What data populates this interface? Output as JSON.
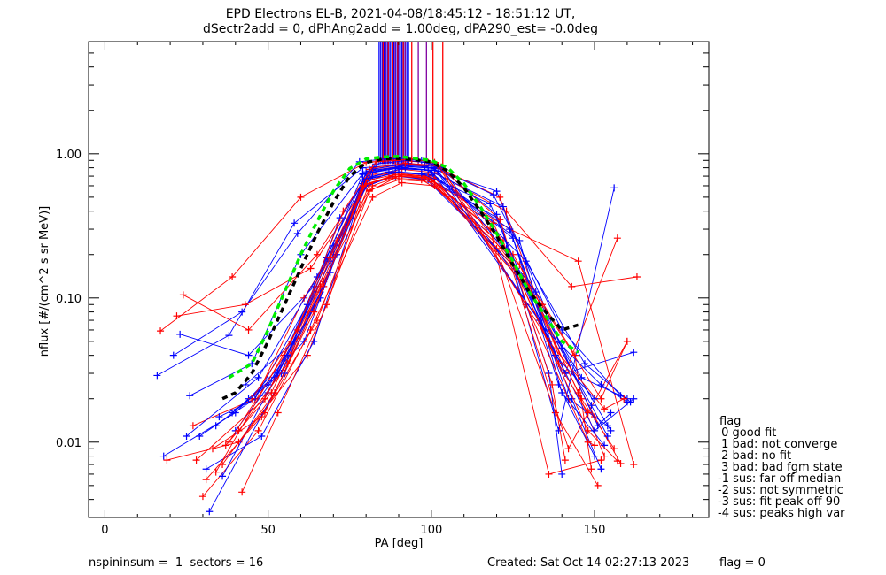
{
  "header": {
    "title_line1": "EPD Electrons EL-B, 2021-04-08/18:45:12 - 18:51:12 UT,",
    "title_line2": "dSectr2add = 0, dPhAng2add = 1.00deg, dPA290_est=  -0.0deg"
  },
  "footer": {
    "left": "nspininsum =  1  sectors = 16",
    "created": "Created: Sat Oct 14 02:27:13 2023",
    "flag": "flag = 0"
  },
  "legend": {
    "title": "flag",
    "items": [
      " 0 good fit",
      " 1 bad: not converge",
      " 2 bad: no fit",
      " 3 bad: bad fgm state",
      "-1 sus: far off median",
      "-2 sus: not symmetric",
      "-3 sus: fit peak off 90",
      "-4 sus: peaks high var"
    ]
  },
  "chart_data": {
    "type": "line",
    "title": "EPD Electrons EL-B, 2021-04-08/18:45:12 - 18:51:12 UT,",
    "subtitle": "dSectr2add = 0, dPhAng2add = 1.00deg, dPA290_est=  -0.0deg",
    "xlabel": "PA [deg]",
    "ylabel": "nflux [#/(cm^2 s sr MeV)]",
    "xlim": [
      -5,
      185
    ],
    "ylim": [
      0.003,
      6.0
    ],
    "yscale": "log",
    "xticks": [
      0,
      50,
      100,
      150
    ],
    "xtick_labels": [
      "0",
      "50",
      "100",
      "150"
    ],
    "yticks": [
      0.01,
      0.1,
      1.0
    ],
    "ytick_labels": [
      "0.01",
      "0.10",
      "1.00"
    ],
    "colors": {
      "red": "#ff0000",
      "blue": "#0000ff",
      "purple": "#8000a0",
      "green": "#00ee00",
      "black": "#000000"
    },
    "series": [
      {
        "color": "blue",
        "x": [
          16,
          38,
          58,
          79,
          88,
          98,
          120,
          140,
          155
        ],
        "y": [
          0.029,
          0.055,
          0.33,
          0.8,
          0.83,
          0.82,
          0.55,
          0.045,
          0.012
        ]
      },
      {
        "color": "red",
        "x": [
          17,
          39,
          60,
          80,
          89,
          99,
          121,
          141,
          157
        ],
        "y": [
          0.059,
          0.14,
          0.5,
          0.87,
          0.9,
          0.87,
          0.5,
          0.03,
          0.26
        ]
      },
      {
        "color": "blue",
        "x": [
          18,
          40,
          61,
          79,
          88,
          97,
          121,
          139,
          156
        ],
        "y": [
          0.008,
          0.016,
          0.05,
          0.62,
          0.75,
          0.72,
          0.35,
          0.012,
          0.58
        ]
      },
      {
        "color": "red",
        "x": [
          19,
          41,
          62,
          81,
          90,
          100,
          122,
          142,
          160
        ],
        "y": [
          0.0075,
          0.01,
          0.04,
          0.55,
          0.7,
          0.66,
          0.25,
          0.009,
          0.05
        ]
      },
      {
        "color": "blue",
        "x": [
          21,
          42,
          59,
          78,
          87,
          97,
          119,
          140,
          158
        ],
        "y": [
          0.04,
          0.08,
          0.28,
          0.88,
          0.93,
          0.9,
          0.52,
          0.06,
          0.021
        ]
      },
      {
        "color": "red",
        "x": [
          22,
          43,
          63,
          82,
          91,
          101,
          123,
          143,
          163
        ],
        "y": [
          0.075,
          0.09,
          0.16,
          0.72,
          0.78,
          0.74,
          0.4,
          0.12,
          0.14
        ]
      },
      {
        "color": "blue",
        "x": [
          23,
          44,
          64,
          80,
          89,
          99,
          123,
          141,
          162
        ],
        "y": [
          0.056,
          0.04,
          0.12,
          0.6,
          0.7,
          0.66,
          0.22,
          0.03,
          0.042
        ]
      },
      {
        "color": "red",
        "x": [
          24,
          44,
          65,
          80,
          88,
          98,
          124,
          145,
          162
        ],
        "y": [
          0.105,
          0.06,
          0.2,
          0.68,
          0.74,
          0.7,
          0.3,
          0.18,
          0.007
        ]
      },
      {
        "color": "blue",
        "x": [
          26,
          45,
          60,
          79,
          89,
          99,
          122,
          139,
          150
        ],
        "y": [
          0.021,
          0.035,
          0.2,
          0.73,
          0.8,
          0.77,
          0.43,
          0.025,
          0.008
        ]
      },
      {
        "color": "red",
        "x": [
          27,
          46,
          61,
          81,
          90,
          100,
          120,
          138,
          151
        ],
        "y": [
          0.013,
          0.02,
          0.1,
          0.56,
          0.66,
          0.64,
          0.22,
          0.016,
          0.005
        ]
      },
      {
        "color": "blue",
        "x": [
          29,
          46,
          62,
          80,
          90,
          100,
          124,
          142,
          154
        ],
        "y": [
          0.011,
          0.02,
          0.09,
          0.66,
          0.75,
          0.72,
          0.3,
          0.02,
          0.013
        ]
      },
      {
        "color": "red",
        "x": [
          30,
          47,
          63,
          82,
          91,
          101,
          125,
          144,
          149
        ],
        "y": [
          0.0042,
          0.012,
          0.06,
          0.5,
          0.63,
          0.6,
          0.2,
          0.04,
          0.0065
        ]
      },
      {
        "color": "blue",
        "x": [
          31,
          48,
          64,
          79,
          88,
          98,
          126,
          146,
          160
        ],
        "y": [
          0.0065,
          0.011,
          0.05,
          0.58,
          0.7,
          0.68,
          0.16,
          0.028,
          0.02
        ]
      },
      {
        "color": "red",
        "x": [
          33,
          48,
          65,
          81,
          89,
          99,
          118,
          136,
          152
        ],
        "y": [
          0.009,
          0.015,
          0.07,
          0.62,
          0.72,
          0.7,
          0.3,
          0.006,
          0.0075
        ]
      },
      {
        "color": "blue",
        "x": [
          35,
          50,
          66,
          80,
          90,
          100,
          127,
          140,
          153
        ],
        "y": [
          0.015,
          0.022,
          0.11,
          0.67,
          0.74,
          0.71,
          0.25,
          0.022,
          0.0095
        ]
      },
      {
        "color": "red",
        "x": [
          37,
          51,
          67,
          82,
          91,
          101,
          128,
          146,
          156
        ],
        "y": [
          0.0095,
          0.022,
          0.13,
          0.6,
          0.71,
          0.68,
          0.14,
          0.02,
          0.009
        ]
      },
      {
        "color": "blue",
        "x": [
          40,
          52,
          68,
          79,
          89,
          99,
          125,
          143,
          152
        ],
        "y": [
          0.012,
          0.028,
          0.19,
          0.72,
          0.79,
          0.77,
          0.26,
          0.02,
          0.0065
        ]
      },
      {
        "color": "red",
        "x": [
          42,
          53,
          68,
          80,
          90,
          100,
          126,
          148,
          157
        ],
        "y": [
          0.0045,
          0.016,
          0.09,
          0.62,
          0.7,
          0.68,
          0.15,
          0.012,
          0.0074
        ]
      },
      {
        "color": "blue",
        "x": [
          44,
          54,
          69,
          80,
          91,
          101,
          129,
          147,
          161
        ],
        "y": [
          0.02,
          0.03,
          0.15,
          0.75,
          0.82,
          0.79,
          0.18,
          0.035,
          0.019
        ]
      },
      {
        "color": "red",
        "x": [
          38,
          55,
          70,
          81,
          92,
          102,
          130,
          150,
          158
        ],
        "y": [
          0.01,
          0.04,
          0.2,
          0.78,
          0.85,
          0.83,
          0.12,
          0.015,
          0.0071
        ]
      },
      {
        "color": "blue",
        "x": [
          36,
          56,
          70,
          82,
          92,
          102,
          131,
          149,
          154
        ],
        "y": [
          0.0058,
          0.04,
          0.23,
          0.7,
          0.8,
          0.76,
          0.1,
          0.018,
          0.011
        ]
      },
      {
        "color": "red",
        "x": [
          34,
          57,
          71,
          81,
          93,
          103,
          129,
          148,
          150
        ],
        "y": [
          0.0062,
          0.05,
          0.25,
          0.76,
          0.84,
          0.81,
          0.09,
          0.01,
          0.0095
        ]
      },
      {
        "color": "blue",
        "x": [
          32,
          55,
          71,
          82,
          93,
          103,
          132,
          151,
          155
        ],
        "y": [
          0.0033,
          0.03,
          0.2,
          0.78,
          0.86,
          0.8,
          0.11,
          0.013,
          0.016
        ]
      },
      {
        "color": "red",
        "x": [
          28,
          49,
          66,
          80,
          88,
          98,
          127,
          145,
          153
        ],
        "y": [
          0.0075,
          0.02,
          0.12,
          0.62,
          0.7,
          0.68,
          0.17,
          0.022,
          0.008
        ]
      },
      {
        "color": "blue",
        "x": [
          25,
          47,
          65,
          80,
          90,
          100,
          133,
          150,
          162
        ],
        "y": [
          0.011,
          0.028,
          0.14,
          0.73,
          0.81,
          0.77,
          0.07,
          0.012,
          0.02
        ]
      },
      {
        "color": "red",
        "x": [
          36,
          52,
          67,
          80,
          89,
          99,
          134,
          152,
          160
        ],
        "y": [
          0.007,
          0.022,
          0.12,
          0.65,
          0.72,
          0.7,
          0.09,
          0.02,
          0.05
        ]
      },
      {
        "color": "blue",
        "x": [
          39,
          53,
          69,
          81,
          91,
          101,
          135,
          152,
          160
        ],
        "y": [
          0.016,
          0.03,
          0.18,
          0.76,
          0.82,
          0.8,
          0.06,
          0.025,
          0.019
        ]
      },
      {
        "color": "red",
        "x": [
          41,
          56,
          69,
          82,
          92,
          102,
          136,
          153,
          159
        ],
        "y": [
          0.012,
          0.035,
          0.19,
          0.8,
          0.86,
          0.83,
          0.05,
          0.017,
          0.02
        ]
      },
      {
        "color": "blue",
        "x": [
          43,
          58,
          72,
          83,
          93,
          101,
          120,
          136,
          140
        ],
        "y": [
          0.025,
          0.05,
          0.36,
          0.85,
          0.9,
          0.85,
          0.38,
          0.03,
          0.006
        ]
      },
      {
        "color": "red",
        "x": [
          45,
          59,
          73,
          83,
          94,
          101,
          121,
          137,
          141
        ],
        "y": [
          0.02,
          0.06,
          0.4,
          0.88,
          0.92,
          0.87,
          0.35,
          0.025,
          0.0075
        ]
      },
      {
        "color": "blue",
        "x": [
          34,
          50,
          66,
          79,
          87,
          97,
          118,
          138,
          150
        ],
        "y": [
          0.013,
          0.025,
          0.1,
          0.66,
          0.75,
          0.73,
          0.45,
          0.04,
          0.02
        ]
      },
      {
        "color": "red",
        "x": [
          31,
          49,
          64,
          79,
          87,
          97,
          119,
          139,
          148
        ],
        "y": [
          0.0055,
          0.016,
          0.08,
          0.6,
          0.68,
          0.66,
          0.33,
          0.035,
          0.016
        ]
      }
    ],
    "median_green": {
      "color": "green",
      "x": [
        38,
        45,
        50,
        55,
        60,
        65,
        70,
        75,
        80,
        85,
        90,
        95,
        100,
        105,
        110,
        115,
        120,
        125,
        130,
        135,
        140,
        145
      ],
      "y": [
        0.028,
        0.035,
        0.06,
        0.11,
        0.2,
        0.34,
        0.55,
        0.79,
        0.92,
        0.95,
        0.96,
        0.93,
        0.9,
        0.8,
        0.62,
        0.43,
        0.28,
        0.18,
        0.11,
        0.075,
        0.05,
        0.042
      ]
    },
    "median_black": {
      "color": "black",
      "x": [
        36,
        40,
        45,
        50,
        55,
        60,
        65,
        70,
        75,
        80,
        85,
        90,
        95,
        100,
        105,
        110,
        115,
        120,
        125,
        130,
        135,
        140,
        145
      ],
      "y": [
        0.02,
        0.022,
        0.03,
        0.05,
        0.09,
        0.16,
        0.28,
        0.46,
        0.7,
        0.87,
        0.92,
        0.93,
        0.91,
        0.88,
        0.76,
        0.58,
        0.4,
        0.27,
        0.17,
        0.11,
        0.08,
        0.06,
        0.065
      ]
    },
    "vertical_markers": [
      {
        "color": "blue",
        "x": [
          84,
          84.5,
          85,
          85.5,
          86,
          86.5,
          87,
          87.5,
          88,
          88.5,
          89,
          89.5,
          90,
          90.5,
          91,
          91.5,
          92,
          92.5,
          93
        ]
      },
      {
        "color": "red",
        "x": [
          85.2,
          86.8,
          88.2,
          89.7,
          91.4,
          94,
          100.5,
          103.5
        ]
      },
      {
        "color": "purple",
        "x": [
          86,
          88.9,
          92,
          96,
          98.5
        ]
      }
    ]
  }
}
